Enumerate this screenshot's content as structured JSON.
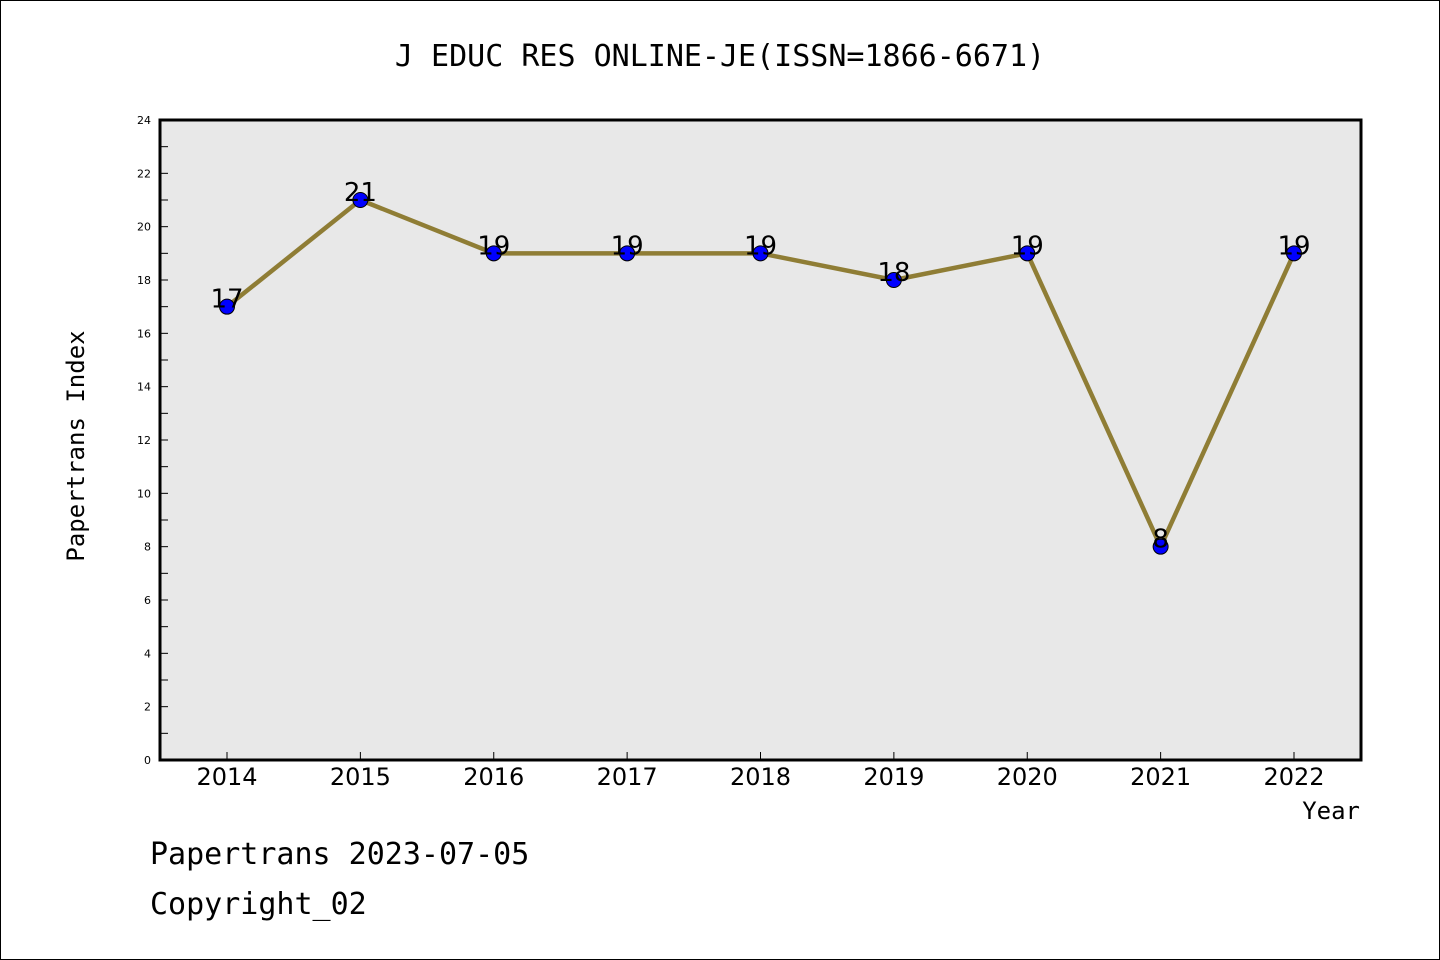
{
  "chart_data": {
    "type": "line",
    "title": "J EDUC RES ONLINE-JE(ISSN=1866-6671)",
    "xlabel": "Year",
    "ylabel": "Papertrans Index",
    "x": [
      "2014",
      "2015",
      "2016",
      "2017",
      "2018",
      "2019",
      "2020",
      "2021",
      "2022"
    ],
    "values": [
      17,
      21,
      19,
      19,
      19,
      18,
      19,
      8,
      19
    ],
    "ylim": [
      0,
      24
    ],
    "yticks": [
      "0",
      "2",
      "4",
      "6",
      "8",
      "10",
      "12",
      "14",
      "16",
      "18",
      "20",
      "22",
      "24"
    ],
    "grid": false,
    "line_color": "#8f7d35",
    "marker_color": "#0000ff",
    "plot_background": "#e8e8e8"
  },
  "footer": {
    "line1": "Papertrans 2023-07-05",
    "line2": "Copyright_02"
  }
}
